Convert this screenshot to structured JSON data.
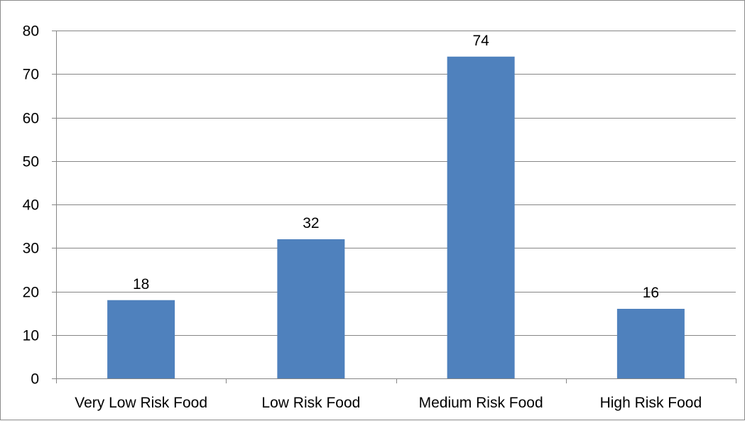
{
  "chart_data": {
    "type": "bar",
    "categories": [
      "Very Low Risk Food",
      "Low Risk Food",
      "Medium Risk Food",
      "High Risk Food"
    ],
    "values": [
      18,
      32,
      74,
      16
    ],
    "data_labels": [
      "18",
      "32",
      "74",
      "16"
    ],
    "title": "",
    "xlabel": "",
    "ylabel": "",
    "ylim": [
      0,
      80
    ],
    "yticks": [
      0,
      10,
      20,
      30,
      40,
      50,
      60,
      70,
      80
    ],
    "ytick_labels": [
      "0",
      "10",
      "20",
      "30",
      "40",
      "50",
      "60",
      "70",
      "80"
    ],
    "grid": true,
    "legend": "none",
    "colors": {
      "bar": "#4f81bd",
      "grid": "#868686",
      "axis": "#868686"
    }
  }
}
